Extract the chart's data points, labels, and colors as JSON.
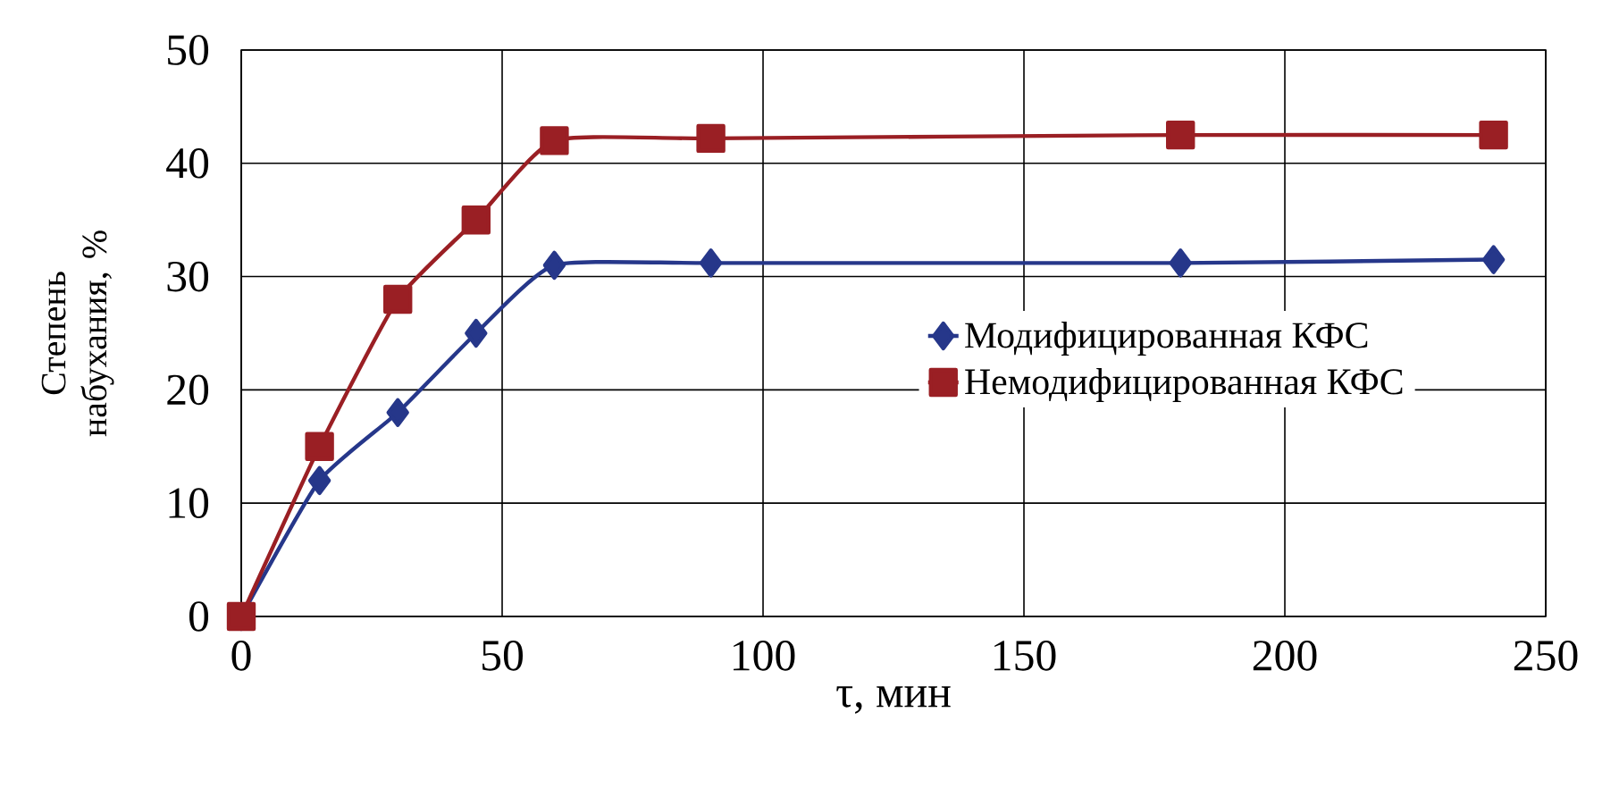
{
  "chart_data": {
    "type": "line",
    "xlabel": "τ, мин",
    "ylabel": "Степень набухания, %",
    "x": [
      0,
      15,
      30,
      45,
      60,
      90,
      180,
      240
    ],
    "series": [
      {
        "name": "Модифицированная КФС",
        "color": "#26378a",
        "marker": "diamond",
        "values": [
          0,
          12,
          18,
          25,
          31,
          31.2,
          31.2,
          31.5
        ]
      },
      {
        "name": "Немодифицированная КФС",
        "color": "#9a1f24",
        "marker": "square",
        "values": [
          0,
          15,
          28,
          35,
          42,
          42.2,
          42.5,
          42.5
        ]
      }
    ],
    "xlim": [
      0,
      250
    ],
    "xticks": [
      0,
      50,
      100,
      150,
      200,
      250
    ],
    "ylim": [
      0,
      50
    ],
    "yticks": [
      0,
      10,
      20,
      30,
      40,
      50
    ],
    "grid": true,
    "legend": "center right",
    "line_style": "solid"
  }
}
